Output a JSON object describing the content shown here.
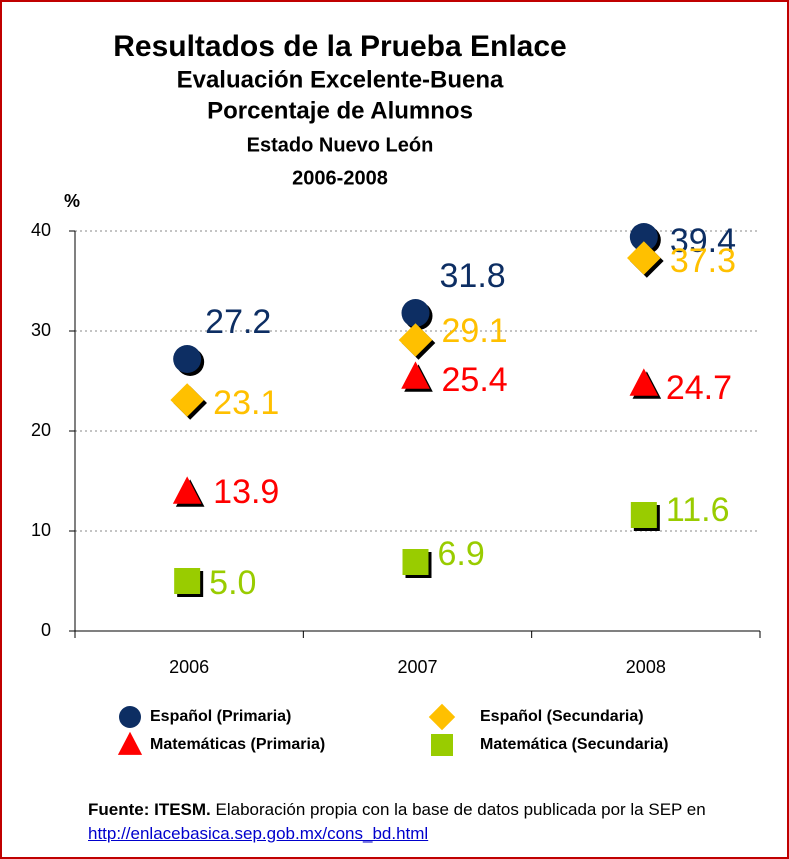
{
  "chart_data": {
    "type": "scatter",
    "title": "Resultados de la Prueba Enlace",
    "subtitles": [
      "Evaluación Excelente-Buena",
      "Porcentaje de Alumnos",
      "Estado Nuevo León",
      "2006-2008"
    ],
    "ylabel": "%",
    "categories": [
      "2006",
      "2007",
      "2008"
    ],
    "series": [
      {
        "name": "Español (Primaria)",
        "color": "#0d2e63",
        "marker": "circle",
        "values": [
          27.2,
          31.8,
          39.4
        ],
        "value_labels": [
          "27.2",
          "31.8",
          "39.4"
        ]
      },
      {
        "name": "Español (Secundaria)",
        "color": "#ffc000",
        "marker": "diamond",
        "values": [
          23.1,
          29.1,
          37.3
        ],
        "value_labels": [
          "23.1",
          "29.1",
          "37.3"
        ]
      },
      {
        "name": "Matemáticas (Primaria)",
        "color": "#ff0000",
        "marker": "triangle",
        "values": [
          13.9,
          25.4,
          24.7
        ],
        "value_labels": [
          "13.9",
          "25.4",
          "24.7"
        ]
      },
      {
        "name": "Matemática (Secundaria)",
        "color": "#99cc00",
        "marker": "square",
        "values": [
          5.0,
          6.9,
          11.6
        ],
        "value_labels": [
          "5.0",
          "6.9",
          "11.6"
        ]
      }
    ],
    "ylim": [
      0,
      40
    ],
    "yticks": [
      0,
      10,
      20,
      30,
      40
    ],
    "grid": true
  },
  "source": {
    "bold": "Fuente: ITESM.",
    "text": " Elaboración propia con la base de datos publicada por la SEP en ",
    "link": "http://enlacebasica.sep.gob.mx/cons_bd.html"
  }
}
